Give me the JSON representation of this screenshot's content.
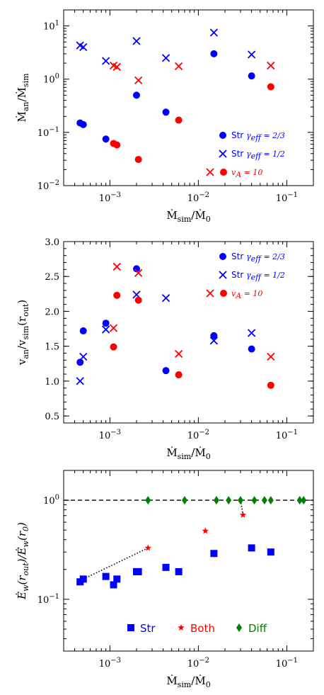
{
  "colors": {
    "blue": "#0000ff",
    "red": "#ff0000",
    "green": "#008000",
    "frame": "#000000"
  },
  "chart_data": [
    {
      "type": "scatter",
      "xlabel": "Ṁ_sim/Ṁ_0",
      "ylabel": "Ṁ_an/Ṁ_sim",
      "xscale": "log",
      "yscale": "log",
      "xlim": [
        0.0003,
        0.2
      ],
      "ylim": [
        0.01,
        20
      ],
      "xticks": [
        {
          "value": 0.001,
          "base": "10",
          "exp": "−3"
        },
        {
          "value": 0.01,
          "base": "10",
          "exp": "−2"
        },
        {
          "value": 0.1,
          "base": "10",
          "exp": "−1"
        }
      ],
      "yticks": [
        {
          "value": 0.01,
          "base": "10",
          "exp": "−2"
        },
        {
          "value": 0.1,
          "base": "10",
          "exp": "−1"
        },
        {
          "value": 1,
          "base": "10",
          "exp": "0"
        },
        {
          "value": 10,
          "base": "10",
          "exp": "1"
        }
      ],
      "legend_position": "lower-right",
      "series": [
        {
          "name": "Str γ_eff=2/3",
          "label": "Str",
          "math": "γeff = 2/3",
          "marker": "circle",
          "color": "#0000ff",
          "x": [
            0.00046,
            0.0005,
            0.0009,
            0.002,
            0.0043,
            0.015,
            0.04
          ],
          "y": [
            0.15,
            0.14,
            0.075,
            0.5,
            0.24,
            3.0,
            1.15
          ]
        },
        {
          "name": "Str γ_eff=1/2",
          "label": "Str",
          "math": "γeff = 1/2",
          "marker": "x",
          "color": "#0000ff",
          "x": [
            0.00046,
            0.0005,
            0.0009,
            0.002,
            0.0043,
            0.015,
            0.04
          ],
          "y": [
            4.3,
            4.0,
            2.2,
            5.2,
            2.5,
            7.5,
            2.9
          ]
        },
        {
          "name": "v_A=10 (circle)",
          "label": "",
          "math": "",
          "marker": "circle",
          "color": "#ff0000",
          "x": [
            0.0011,
            0.0012,
            0.0021,
            0.006,
            0.066
          ],
          "y": [
            0.062,
            0.058,
            0.031,
            0.17,
            0.72
          ]
        },
        {
          "name": "v_A=10 (cross)",
          "label": "",
          "math": "vA = 10",
          "marker": "x",
          "color": "#ff0000",
          "x": [
            0.0011,
            0.0012,
            0.0021,
            0.006,
            0.066
          ],
          "y": [
            1.8,
            1.7,
            0.95,
            1.75,
            1.8
          ]
        }
      ]
    },
    {
      "type": "scatter",
      "xlabel": "Ṁ_sim/Ṁ_0",
      "ylabel": "v_an/v_sim(r_out)",
      "xscale": "log",
      "yscale": "linear",
      "xlim": [
        0.0003,
        0.2
      ],
      "ylim": [
        0.4,
        3.0
      ],
      "xticks": [
        {
          "value": 0.001,
          "base": "10",
          "exp": "−3"
        },
        {
          "value": 0.01,
          "base": "10",
          "exp": "−2"
        },
        {
          "value": 0.1,
          "base": "10",
          "exp": "−1"
        }
      ],
      "yticks": [
        {
          "value": 0.5,
          "label": "0.5"
        },
        {
          "value": 1.0,
          "label": "1.0"
        },
        {
          "value": 1.5,
          "label": "1.5"
        },
        {
          "value": 2.0,
          "label": "2.0"
        },
        {
          "value": 2.5,
          "label": "2.5"
        },
        {
          "value": 3.0,
          "label": "3.0"
        }
      ],
      "legend_position": "upper-right",
      "series": [
        {
          "name": "Str γ_eff=2/3",
          "label": "Str",
          "math": "γeff = 2/3",
          "marker": "circle",
          "color": "#0000ff",
          "x": [
            0.00046,
            0.0005,
            0.0009,
            0.002,
            0.0043,
            0.015,
            0.04
          ],
          "y": [
            1.27,
            1.72,
            1.83,
            2.61,
            1.15,
            1.65,
            1.46
          ]
        },
        {
          "name": "Str γ_eff=1/2",
          "label": "Str",
          "math": "γeff = 1/2",
          "marker": "x",
          "color": "#0000ff",
          "x": [
            0.00046,
            0.0005,
            0.0009,
            0.002,
            0.0043,
            0.015,
            0.04
          ],
          "y": [
            1.0,
            1.35,
            1.74,
            2.24,
            2.19,
            1.58,
            1.69
          ]
        },
        {
          "name": "v_A=10 (circle)",
          "label": "",
          "math": "",
          "marker": "circle",
          "color": "#ff0000",
          "x": [
            0.0011,
            0.0012,
            0.0021,
            0.006,
            0.066
          ],
          "y": [
            1.49,
            2.23,
            2.16,
            1.09,
            0.94
          ]
        },
        {
          "name": "v_A=10 (cross)",
          "label": "",
          "math": "vA = 10",
          "marker": "x",
          "color": "#ff0000",
          "x": [
            0.0011,
            0.0012,
            0.0021,
            0.006,
            0.066
          ],
          "y": [
            1.76,
            2.64,
            2.55,
            1.39,
            1.35
          ]
        }
      ]
    },
    {
      "type": "scatter",
      "xlabel": "Ṁ_sim/Ṁ_0",
      "ylabel": "Ė_w(r_out)/Ė_w(r_0)",
      "xscale": "log",
      "yscale": "log",
      "xlim": [
        0.0003,
        0.2
      ],
      "ylim": [
        0.03,
        2.0
      ],
      "xticks": [
        {
          "value": 0.001,
          "base": "10",
          "exp": "−3"
        },
        {
          "value": 0.01,
          "base": "10",
          "exp": "−2"
        },
        {
          "value": 0.1,
          "base": "10",
          "exp": "−1"
        }
      ],
      "yticks": [
        {
          "value": 0.1,
          "base": "10",
          "exp": "−1"
        },
        {
          "value": 1,
          "base": "10",
          "exp": "0"
        }
      ],
      "reference_line": {
        "y": 1.0,
        "style": "dashed"
      },
      "legend_position": "bottom",
      "series": [
        {
          "name": "Str",
          "label": "Str",
          "marker": "square",
          "color": "#0000ff",
          "x": [
            0.00046,
            0.0005,
            0.0009,
            0.0011,
            0.0012,
            0.002,
            0.0021,
            0.0043,
            0.006,
            0.015,
            0.04,
            0.066
          ],
          "y": [
            0.15,
            0.16,
            0.17,
            0.14,
            0.16,
            0.19,
            0.19,
            0.21,
            0.19,
            0.29,
            0.33,
            0.3
          ]
        },
        {
          "name": "Both",
          "label": "Both",
          "marker": "star",
          "color": "#ff0000",
          "x": [
            0.0027,
            0.012,
            0.032
          ],
          "y": [
            0.33,
            0.49,
            0.71
          ]
        },
        {
          "name": "Diff",
          "label": "Diff",
          "marker": "diamond",
          "color": "#008000",
          "x": [
            0.0027,
            0.007,
            0.016,
            0.022,
            0.03,
            0.043,
            0.056,
            0.066,
            0.14,
            0.155
          ],
          "y": [
            1,
            1,
            1,
            1,
            1,
            1,
            1,
            1,
            1,
            1
          ]
        }
      ],
      "dotted_connectors": [
        {
          "from": [
            0.0005,
            0.16
          ],
          "to": [
            0.0027,
            0.33
          ]
        },
        {
          "from": [
            0.03,
            1.0
          ],
          "to": [
            0.032,
            0.71
          ]
        }
      ]
    }
  ]
}
